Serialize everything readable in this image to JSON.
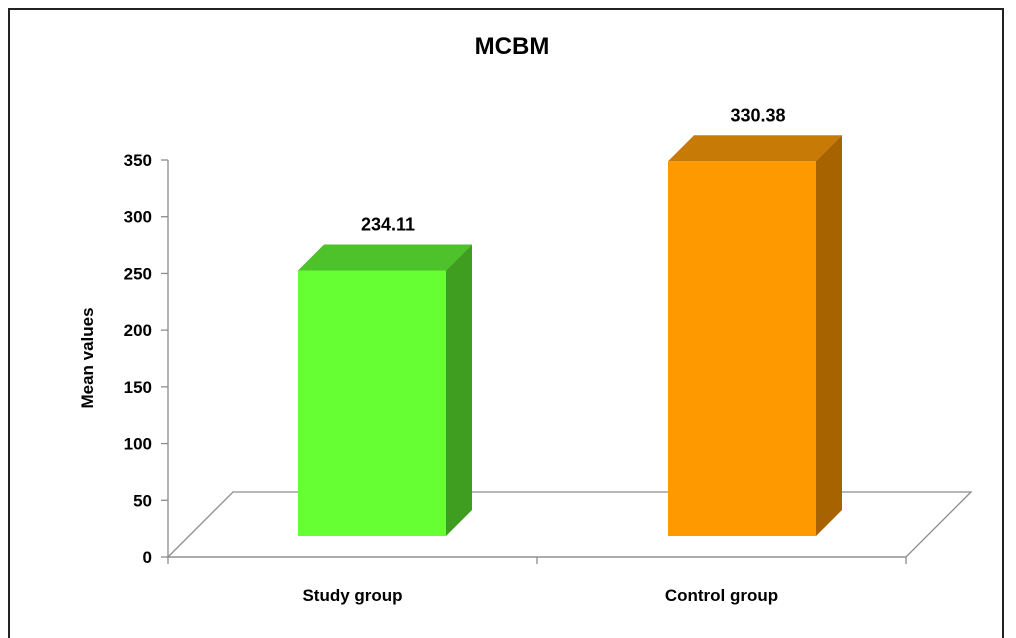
{
  "chart_data": {
    "type": "bar",
    "style": "3d",
    "title": "MCBM",
    "xlabel": "",
    "ylabel": "Mean values",
    "ylim": [
      0,
      350
    ],
    "yticks": [
      "0",
      "50",
      "100",
      "150",
      "200",
      "250",
      "300",
      "350"
    ],
    "categories": [
      "Study group",
      "Control group"
    ],
    "values": [
      234.11,
      330.38
    ],
    "data_labels": [
      "234.11",
      "330.38"
    ],
    "colors": {
      "front": [
        "#66ff33",
        "#ff9900"
      ],
      "top": [
        "#4ec22a",
        "#c87a06"
      ],
      "side": [
        "#3f9d1f",
        "#a66300"
      ]
    },
    "grid": false,
    "legend": "none"
  }
}
